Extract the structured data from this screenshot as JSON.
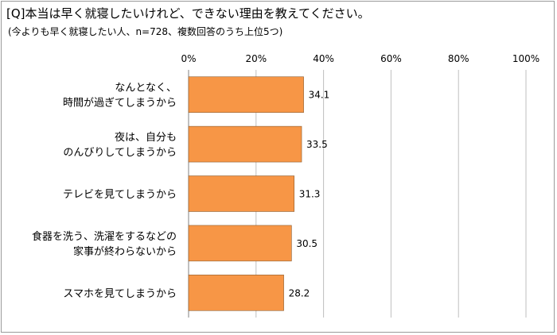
{
  "title": "[Q]本当は早く就寝したいけれど、できない理由を教えてください。",
  "subtitle": "(今よりも早く就寝したい人、n=728、複数回答のうち上位5つ)",
  "chart_data": {
    "type": "bar",
    "orientation": "horizontal",
    "categories": [
      [
        "なんとなく、",
        "時間が過ぎてしまうから"
      ],
      [
        "夜は、自分も",
        "のんびりしてしまうから"
      ],
      [
        "テレビを見てしまうから"
      ],
      [
        "食器を洗う、洗濯をするなどの",
        "家事が終わらないから"
      ],
      [
        "スマホを見てしまうから"
      ]
    ],
    "values": [
      34.1,
      33.5,
      31.3,
      30.5,
      28.2
    ],
    "xlim": [
      0,
      100
    ],
    "ticks": [
      0,
      20,
      40,
      60,
      80,
      100
    ],
    "tick_labels": [
      "0%",
      "20%",
      "40%",
      "60%",
      "80%",
      "100%"
    ],
    "grid": true,
    "bar_color": "#F79646",
    "bar_edge_color": "#8B5A2B"
  }
}
